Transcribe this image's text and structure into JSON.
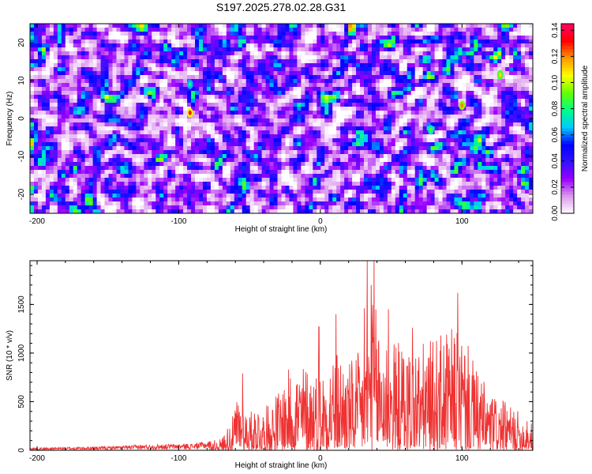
{
  "title": "S197.2025.278.02.28.G31",
  "chart_data": [
    {
      "type": "heatmap",
      "title": "S197.2025.278.02.28.G31",
      "xlabel": "Height of straight line (km)",
      "ylabel": "Frequency (Hz)",
      "xlim": [
        -205,
        150
      ],
      "ylim": [
        -25,
        25
      ],
      "xticks": [
        "-200",
        "-100",
        "0",
        "100"
      ],
      "xtick_values": [
        -200,
        -100,
        0,
        100
      ],
      "yticks": [
        "-20",
        "-10",
        "0",
        "10",
        "20"
      ],
      "ytick_values": [
        -20,
        -10,
        0,
        10,
        20
      ],
      "colorbar": {
        "label": "Normalized spectral amplitude",
        "range": [
          0,
          0.145
        ],
        "ticks": [
          "0.00",
          "0.02",
          "0.04",
          "0.06",
          "0.08",
          "0.10",
          "0.12",
          "0.14"
        ],
        "tick_values": [
          0,
          0.02,
          0.04,
          0.06,
          0.08,
          0.1,
          0.12,
          0.14
        ],
        "colors": [
          "#ffffff",
          "#dd99ee",
          "#9900ff",
          "#3311ff",
          "#0000ff",
          "#00ccff",
          "#00ff88",
          "#66ff00",
          "#ffff00",
          "#ff9900",
          "#ff0000",
          "#ff0066"
        ]
      },
      "peaks": [
        {
          "x": -92,
          "y": 1.5,
          "value": 0.13
        },
        {
          "x": 100,
          "y": 3.5,
          "value": 0.12
        },
        {
          "x": 127,
          "y": 11.5,
          "value": 0.11
        },
        {
          "x": 78,
          "y": -3,
          "value": 0.09
        },
        {
          "x": -92,
          "y": 9,
          "value": 0.08
        }
      ]
    },
    {
      "type": "line",
      "xlabel": "Height of straight line (km)",
      "ylabel": "SNR (10 * v/v)",
      "xlim": [
        -205,
        150
      ],
      "ylim": [
        0,
        1950
      ],
      "xticks": [
        "-200",
        "-100",
        "0",
        "100"
      ],
      "xtick_values": [
        -200,
        -100,
        0,
        100
      ],
      "yticks": [
        "0",
        "500",
        "1000",
        "1500"
      ],
      "ytick_values": [
        0,
        500,
        1000,
        1500
      ],
      "color": "#ee3333",
      "envelope": {
        "x": [
          -205,
          -150,
          -120,
          -90,
          -70,
          -62,
          -58,
          -50,
          -45,
          -40,
          -30,
          -20,
          -10,
          0,
          10,
          20,
          30,
          35,
          40,
          50,
          60,
          70,
          80,
          90,
          100,
          110,
          120,
          130,
          140,
          145,
          150
        ],
        "y": [
          25,
          40,
          60,
          70,
          120,
          350,
          600,
          380,
          500,
          420,
          620,
          900,
          900,
          820,
          1080,
          920,
          1050,
          1600,
          1450,
          1150,
          1100,
          1100,
          1150,
          1250,
          1250,
          850,
          600,
          500,
          400,
          320,
          280
        ]
      },
      "peaks": [
        {
          "x": -55,
          "y": 790
        },
        {
          "x": -1,
          "y": 1270
        },
        {
          "x": 11,
          "y": 1400
        },
        {
          "x": 31,
          "y": 1460
        },
        {
          "x": 33,
          "y": 1950
        },
        {
          "x": 36,
          "y": 1700
        },
        {
          "x": 38,
          "y": 1950
        },
        {
          "x": 48,
          "y": 1450
        },
        {
          "x": 65,
          "y": 1260
        },
        {
          "x": 97,
          "y": 1620
        },
        {
          "x": 146,
          "y": 300
        }
      ]
    }
  ]
}
